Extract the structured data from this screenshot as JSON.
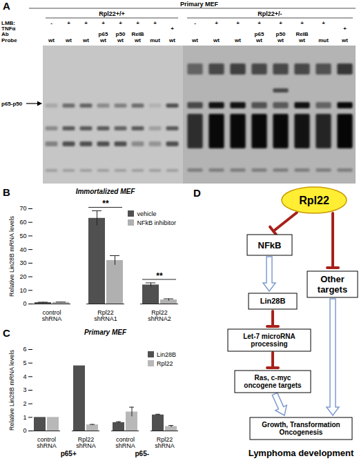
{
  "panel_a": {
    "letter": "A",
    "header": "Primary MEF",
    "row_labels": [
      "LMB:",
      "TNFα",
      "Ab",
      "Probe"
    ],
    "band_label": "p65-p50",
    "groups": [
      {
        "label": "Rpl22+/+",
        "rows": [
          [
            "-",
            "+",
            "+",
            "+",
            "+",
            "+",
            "+",
            null
          ],
          [
            null,
            null,
            null,
            null,
            null,
            null,
            null,
            "+"
          ],
          [
            null,
            null,
            null,
            "p65",
            "p50",
            "RelB",
            null,
            null
          ],
          [
            "wt",
            "wt",
            "wt",
            "wt",
            "wt",
            "wt",
            "mut",
            "wt"
          ]
        ]
      },
      {
        "label": "Rpl22+/-",
        "rows": [
          [
            "-",
            "+",
            "+",
            "+",
            "+",
            "+",
            "+",
            null
          ],
          [
            null,
            null,
            null,
            null,
            null,
            null,
            null,
            "+"
          ],
          [
            null,
            null,
            null,
            "p65",
            "p50",
            "RelB",
            null,
            null
          ],
          [
            "wt",
            "wt",
            "wt",
            "wt",
            "wt",
            "wt",
            "mut",
            "wt"
          ]
        ]
      }
    ]
  },
  "chart_data": [
    {
      "letter": "B",
      "type": "bar",
      "title": "Immortalized MEF",
      "y_label": "Relative Lin28B mRNA levels",
      "categories": [
        "control shRNA",
        "Rpl22 shRNA1",
        "Rpl22 shRNA2"
      ],
      "series": [
        {
          "name": "vehicle",
          "color": "#505050",
          "values": [
            1,
            63,
            14
          ],
          "errors": [
            0.3,
            5.5,
            1.5
          ]
        },
        {
          "name": "NFkB inhibitor",
          "color": "#b0b0b0",
          "values": [
            1.2,
            32,
            3
          ],
          "errors": [
            0.2,
            3.5,
            0.8
          ]
        }
      ],
      "ylim": [
        0,
        70
      ],
      "yticks": [
        0,
        10,
        20,
        30,
        40,
        50,
        60,
        70
      ],
      "legend": "top-right",
      "annotations": [
        {
          "category": 1,
          "text": "**"
        },
        {
          "category": 2,
          "text": "**"
        }
      ]
    },
    {
      "letter": "C",
      "type": "bar",
      "title": "Primary MEF",
      "y_label": "Relative Lin28B mRNA levels",
      "categories": [
        "control shRNA",
        "Rpl22 shRNA",
        "control shRNA",
        "Rpl22 shRNA"
      ],
      "groups": [
        "p65+",
        "p65+",
        "p65-",
        "p65-"
      ],
      "series": [
        {
          "name": "Lin28B",
          "color": "#505050",
          "values": [
            1,
            4.8,
            0.62,
            1.18
          ],
          "errors": [
            0,
            0,
            0.06,
            0.05
          ]
        },
        {
          "name": "Rpl22",
          "color": "#b8b8b8",
          "values": [
            1,
            0.45,
            1.4,
            0.33
          ],
          "errors": [
            0,
            0.03,
            0.35,
            0.07
          ]
        }
      ],
      "ylim": [
        0,
        6
      ],
      "yticks": [
        0,
        1,
        2,
        3,
        4,
        5,
        6
      ],
      "legend": "top-right"
    }
  ],
  "panel_d": {
    "letter": "D",
    "nodes": [
      "Rpl22",
      "NFkB",
      "Lin28B",
      "Let-7 microRNA processing",
      "Ras, c-myc oncogene targets",
      "Other targets",
      "Growth, Transformation Oncogenesis"
    ],
    "caption": "Lymphoma development"
  }
}
